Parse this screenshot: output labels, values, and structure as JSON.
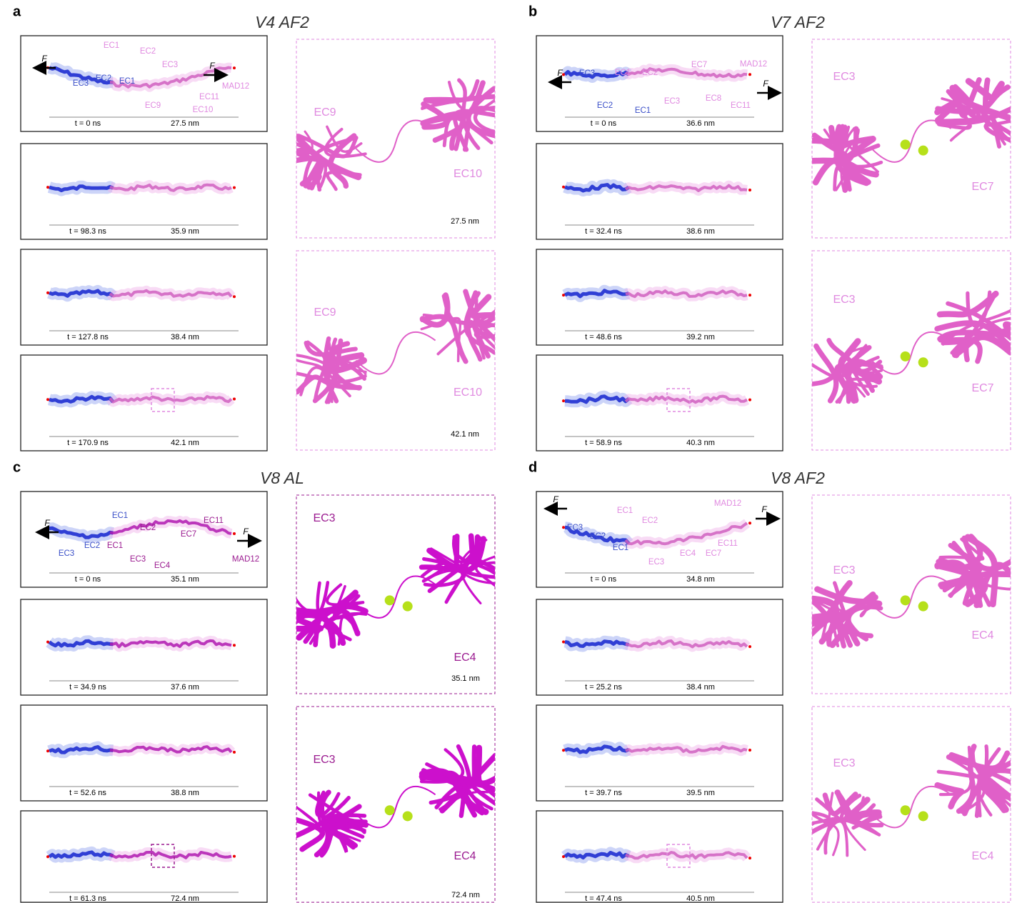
{
  "panels": [
    {
      "letter": "a",
      "title": "V4 AF2",
      "snapshots": [
        {
          "time": "t = 0 ns",
          "length": "27.5 nm",
          "labels": [
            "F",
            "F",
            "EC3",
            "EC2",
            "EC1",
            "EC1",
            "EC2",
            "EC3",
            "EC9",
            "EC10",
            "EC11",
            "MAD12"
          ]
        },
        {
          "time": "t = 98.3 ns",
          "length": "35.9 nm"
        },
        {
          "time": "t = 127.8 ns",
          "length": "38.4 nm"
        },
        {
          "time": "t = 170.9 ns",
          "length": "42.1 nm"
        }
      ],
      "zooms": [
        {
          "labels": [
            "EC9",
            "EC10"
          ],
          "length": "27.5 nm"
        },
        {
          "labels": [
            "EC9",
            "EC10"
          ],
          "length": "42.1 nm"
        }
      ]
    },
    {
      "letter": "b",
      "title": "V7 AF2",
      "snapshots": [
        {
          "time": "t = 0 ns",
          "length": "36.6 nm",
          "labels": [
            "F",
            "F",
            "EC3",
            "EC2",
            "EC1",
            "EC1",
            "EC2",
            "EC7",
            "MAD12",
            "EC3",
            "EC8",
            "EC11"
          ]
        },
        {
          "time": "t = 32.4 ns",
          "length": "38.6 nm"
        },
        {
          "time": "t = 48.6 ns",
          "length": "39.2 nm"
        },
        {
          "time": "t = 58.9 ns",
          "length": "40.3 nm"
        }
      ],
      "zooms": [
        {
          "labels": [
            "EC3",
            "EC7"
          ]
        },
        {
          "labels": [
            "EC3",
            "EC7"
          ]
        }
      ]
    },
    {
      "letter": "c",
      "title": "V8 AL",
      "snapshots": [
        {
          "time": "t = 0 ns",
          "length": "35.1 nm",
          "labels": [
            "F",
            "F",
            "EC1",
            "EC2",
            "EC11",
            "EC7",
            "EC3",
            "EC2",
            "EC1",
            "EC3",
            "EC4",
            "MAD12"
          ]
        },
        {
          "time": "t = 34.9 ns",
          "length": "37.6 nm"
        },
        {
          "time": "t = 52.6 ns",
          "length": "38.8 nm"
        },
        {
          "time": "t = 61.3 ns",
          "length": "72.4 nm"
        }
      ],
      "zooms": [
        {
          "labels": [
            "EC3",
            "EC4"
          ],
          "length": "35.1 nm"
        },
        {
          "labels": [
            "EC3",
            "EC4"
          ],
          "length": "72.4 nm"
        }
      ]
    },
    {
      "letter": "d",
      "title": "V8 AF2",
      "snapshots": [
        {
          "time": "t = 0 ns",
          "length": "34.8 nm",
          "labels": [
            "F",
            "F",
            "EC3",
            "EC2",
            "EC1",
            "EC1",
            "EC2",
            "MAD12",
            "EC11",
            "EC4",
            "EC7",
            "EC3"
          ]
        },
        {
          "time": "t = 25.2 ns",
          "length": "38.4 nm"
        },
        {
          "time": "t = 39.7 ns",
          "length": "39.5 nm"
        },
        {
          "time": "t = 47.4 ns",
          "length": "40.5 nm"
        }
      ],
      "zooms": [
        {
          "labels": [
            "EC3",
            "EC4"
          ]
        },
        {
          "labels": [
            "EC3",
            "EC4"
          ]
        }
      ]
    }
  ]
}
